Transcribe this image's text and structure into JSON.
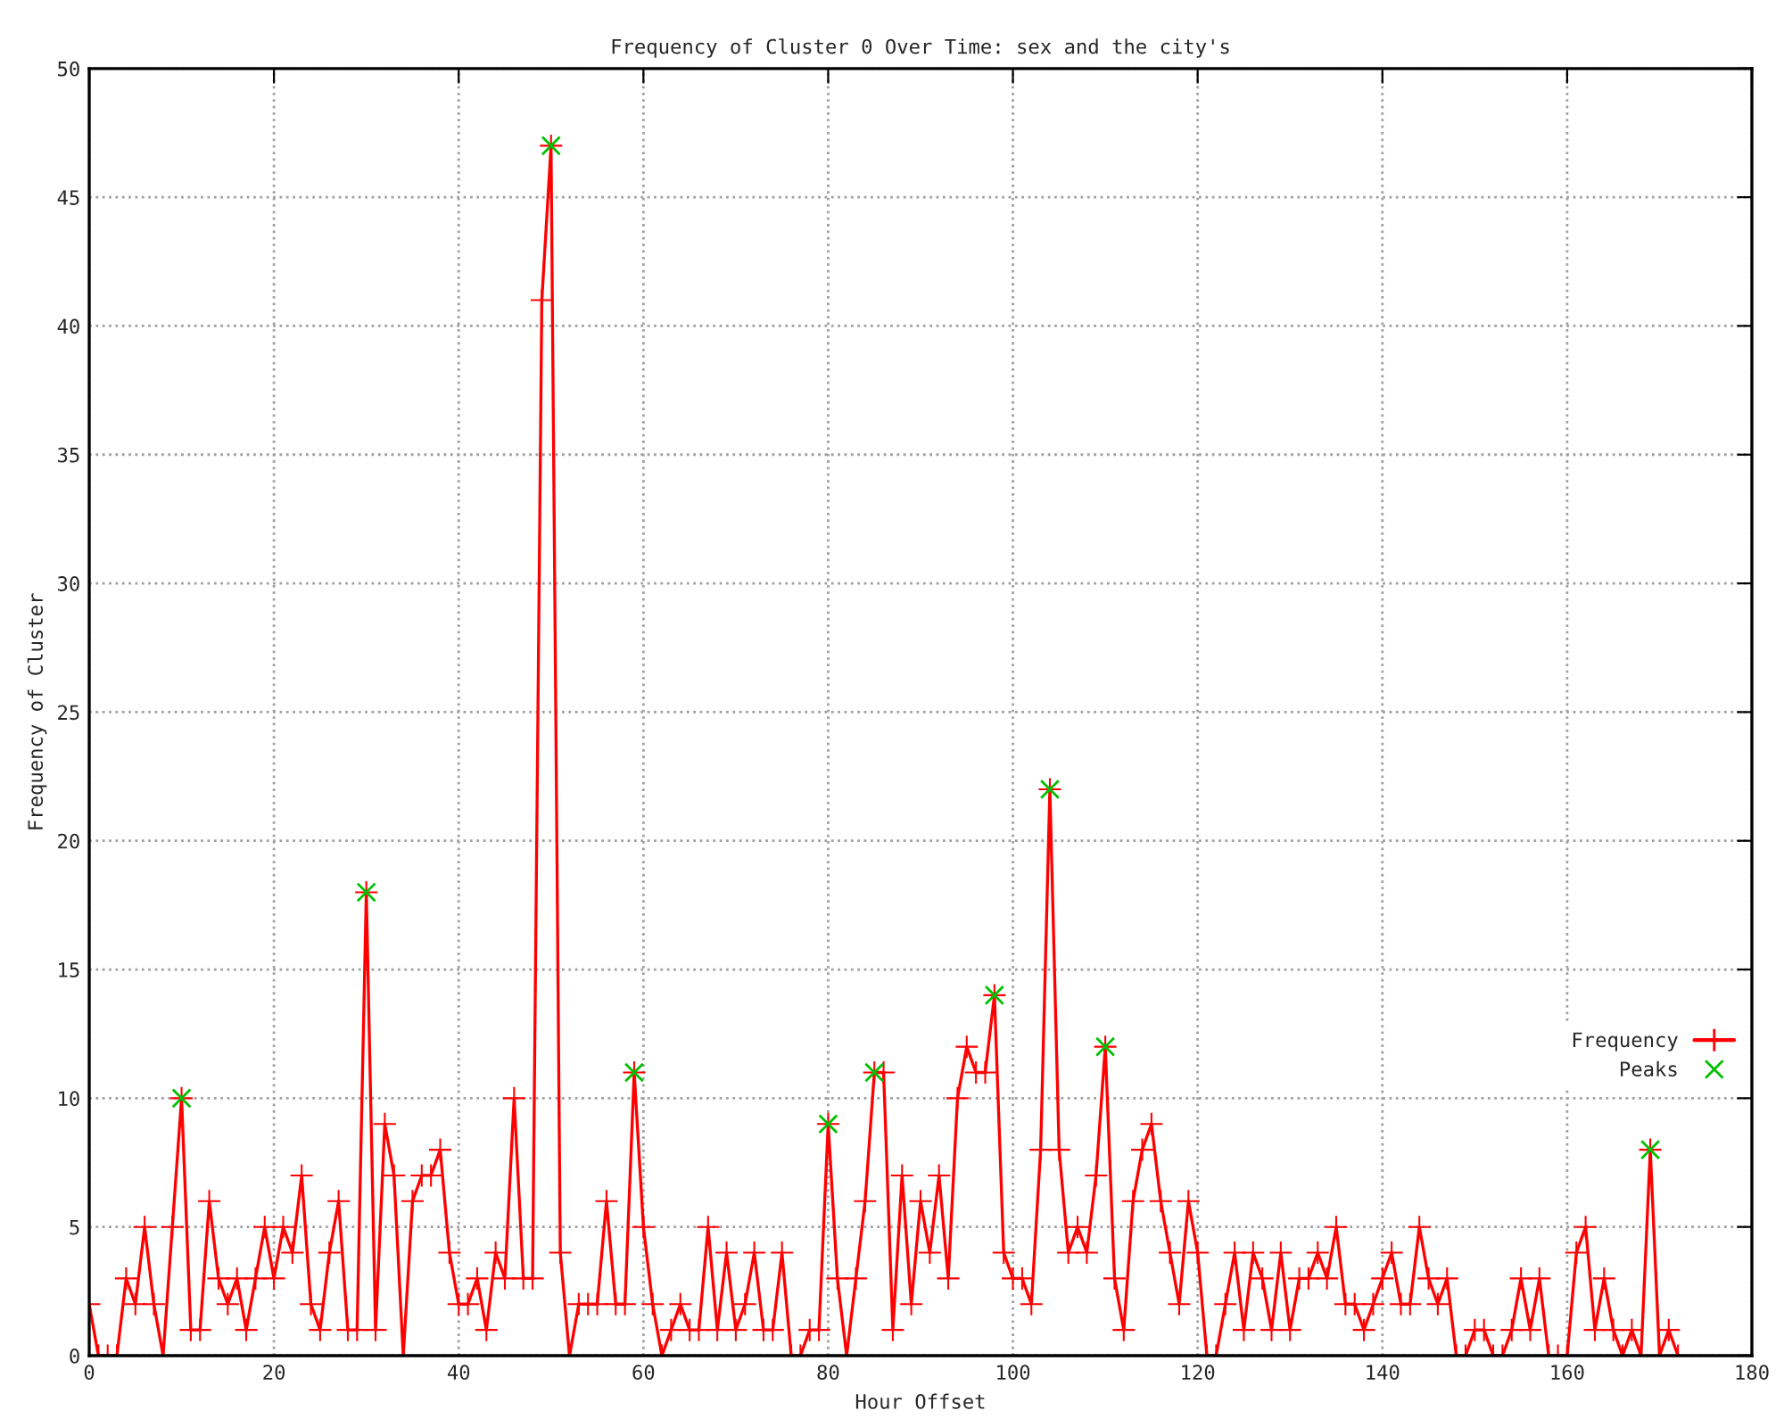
{
  "chart_data": {
    "type": "line",
    "title": "Frequency of Cluster 0 Over Time: sex and the city's",
    "xlabel": "Hour Offset",
    "ylabel": "Frequency of Cluster",
    "xlim": [
      0,
      180
    ],
    "xticks": [
      0,
      20,
      40,
      60,
      80,
      100,
      120,
      140,
      160,
      180
    ],
    "ylim": [
      0,
      50
    ],
    "yticks": [
      0,
      5,
      10,
      15,
      20,
      25,
      30,
      35,
      40,
      45,
      50
    ],
    "grid": true,
    "legend": "bottom right",
    "series": [
      {
        "name": "Frequency",
        "color": "#ff0000",
        "marker": "cross",
        "line_style": "solid",
        "x": [
          0,
          1,
          2,
          3,
          4,
          5,
          6,
          7,
          8,
          9,
          10,
          11,
          12,
          13,
          14,
          15,
          16,
          17,
          18,
          19,
          20,
          21,
          22,
          23,
          24,
          25,
          26,
          27,
          28,
          29,
          30,
          31,
          32,
          33,
          34,
          35,
          36,
          37,
          38,
          39,
          40,
          41,
          42,
          43,
          44,
          45,
          46,
          47,
          48,
          49,
          50,
          51,
          52,
          53,
          54,
          55,
          56,
          57,
          58,
          59,
          60,
          61,
          62,
          63,
          64,
          65,
          66,
          67,
          68,
          69,
          70,
          71,
          72,
          73,
          74,
          75,
          76,
          77,
          78,
          79,
          80,
          81,
          82,
          83,
          84,
          85,
          86,
          87,
          88,
          89,
          90,
          91,
          92,
          93,
          94,
          95,
          96,
          97,
          98,
          99,
          100,
          101,
          102,
          103,
          104,
          105,
          106,
          107,
          108,
          109,
          110,
          111,
          112,
          113,
          114,
          115,
          116,
          117,
          118,
          119,
          120,
          121,
          122,
          123,
          124,
          125,
          126,
          127,
          128,
          129,
          130,
          131,
          132,
          133,
          134,
          135,
          136,
          137,
          138,
          139,
          140,
          141,
          142,
          143,
          144,
          145,
          146,
          147,
          148,
          149,
          150,
          151,
          152,
          153,
          154,
          155,
          156,
          157,
          158,
          159,
          160,
          161,
          162,
          163,
          164,
          165,
          166,
          167,
          168,
          169,
          170,
          171,
          172
        ],
        "values": [
          2,
          0,
          0,
          0,
          3,
          2,
          5,
          2,
          0,
          5,
          10,
          1,
          1,
          6,
          3,
          2,
          3,
          1,
          3,
          5,
          3,
          5,
          4,
          7,
          2,
          1,
          4,
          6,
          1,
          1,
          18,
          1,
          9,
          7,
          0,
          6,
          7,
          7,
          8,
          4,
          2,
          2,
          3,
          1,
          4,
          3,
          10,
          3,
          3,
          41,
          47,
          4,
          0,
          2,
          2,
          2,
          6,
          2,
          2,
          11,
          5,
          2,
          0,
          1,
          2,
          1,
          1,
          5,
          1,
          4,
          1,
          2,
          4,
          1,
          1,
          4,
          0,
          0,
          1,
          1,
          9,
          3,
          0,
          3,
          6,
          11,
          11,
          1,
          7,
          2,
          6,
          4,
          7,
          3,
          10,
          12,
          11,
          11,
          14,
          4,
          3,
          3,
          2,
          8,
          22,
          8,
          4,
          5,
          4,
          7,
          12,
          3,
          1,
          6,
          8,
          9,
          6,
          4,
          2,
          6,
          4,
          0,
          0,
          2,
          4,
          1,
          4,
          3,
          1,
          4,
          1,
          3,
          3,
          4,
          3,
          5,
          2,
          2,
          1,
          2,
          3,
          4,
          2,
          2,
          5,
          3,
          2,
          3,
          0,
          0,
          1,
          1,
          0,
          0,
          1,
          3,
          1,
          3,
          0,
          0,
          0,
          4,
          5,
          1,
          3,
          1,
          0,
          1,
          0,
          8,
          0,
          1,
          0
        ]
      },
      {
        "name": "Peaks",
        "type": "scatter",
        "color": "#00c000",
        "marker": "cross",
        "x": [
          10,
          30,
          50,
          59,
          80,
          85,
          98,
          104,
          110,
          169
        ],
        "values": [
          10,
          18,
          47,
          11,
          9,
          11,
          14,
          22,
          12,
          8
        ]
      }
    ]
  }
}
